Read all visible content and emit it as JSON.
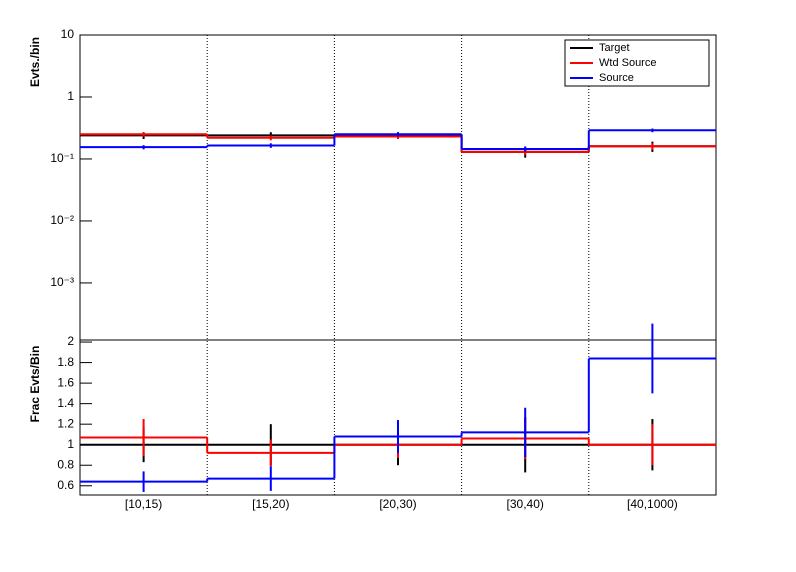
{
  "chart_data": [
    {
      "type": "step",
      "y_label": "Evts./bin",
      "log_y": true,
      "ylim": [
        0.00012,
        10
      ],
      "yticks": [
        {
          "value": 0.001,
          "label": "10⁻³"
        },
        {
          "value": 0.01,
          "label": "10⁻²"
        },
        {
          "value": 0.1,
          "label": "10⁻¹"
        },
        1,
        10
      ],
      "legend": "top-right",
      "series": [
        {
          "name": "Target",
          "color": "#000000",
          "values": [
            0.24,
            0.24,
            0.24,
            0.13,
            0.16
          ],
          "errors": [
            0.03,
            0.03,
            0.03,
            0.025,
            0.03
          ]
        },
        {
          "name": "Wtd Source",
          "color": "#ff0000",
          "values": [
            0.25,
            0.22,
            0.23,
            0.13,
            0.16
          ],
          "errors": [
            0.02,
            0.02,
            0.02,
            0.015,
            0.02
          ]
        },
        {
          "name": "Source",
          "color": "#0000ff",
          "values": [
            0.155,
            0.165,
            0.25,
            0.145,
            0.29
          ],
          "errors": [
            0.012,
            0.014,
            0.02,
            0.014,
            0.02
          ]
        }
      ]
    },
    {
      "type": "step",
      "y_label": "Frac Evts/Bin",
      "categories": [
        "[10,15)",
        "[15,20)",
        "[20,30)",
        "[30,40)",
        "[40,1000)"
      ],
      "ylim": [
        0.51,
        2.02
      ],
      "yticks": [
        0.6,
        0.8,
        1,
        1.2,
        1.4,
        1.6,
        1.8,
        2
      ],
      "series": [
        {
          "color": "#000000",
          "values": [
            1,
            1,
            1,
            1,
            1
          ],
          "errors": [
            0.17,
            0.2,
            0.2,
            0.27,
            0.25
          ]
        },
        {
          "color": "#ff0000",
          "values": [
            1.07,
            0.92,
            1,
            1.06,
            1
          ],
          "errors": [
            0.18,
            0.13,
            0.13,
            0.2,
            0.2
          ]
        },
        {
          "color": "#0000ff",
          "values": [
            0.64,
            0.67,
            1.08,
            1.12,
            1.84
          ],
          "errors": [
            0.1,
            0.12,
            0.16,
            0.24,
            0.34
          ]
        }
      ]
    }
  ]
}
